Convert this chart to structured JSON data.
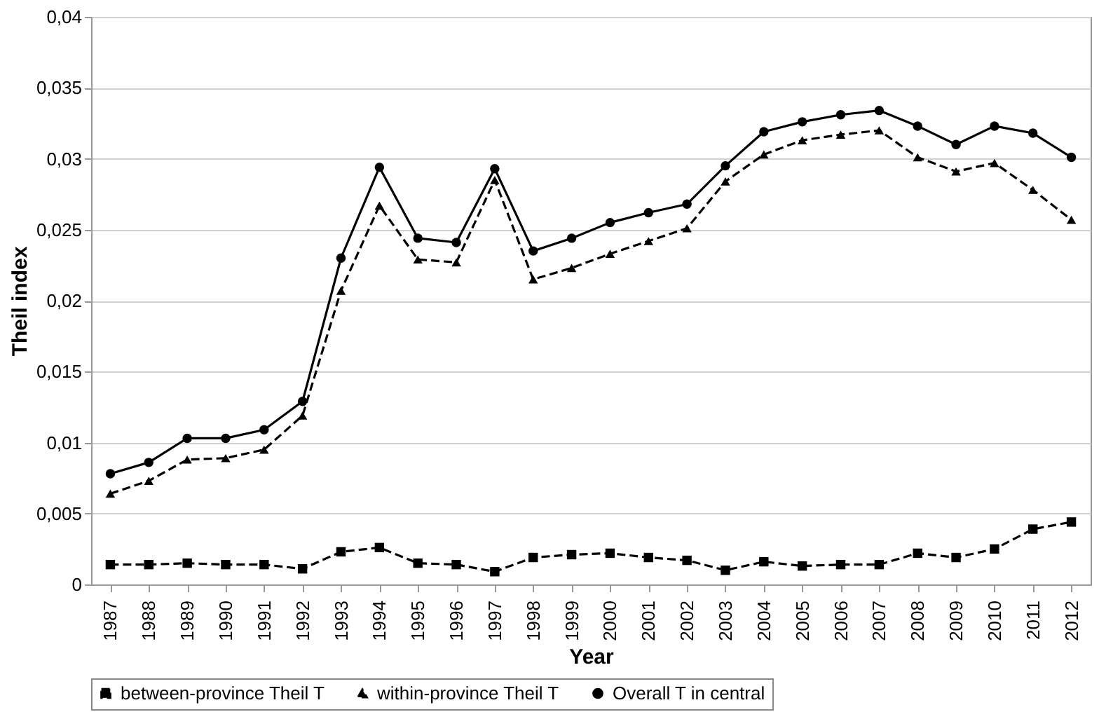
{
  "chart_data": {
    "type": "line",
    "xlabel": "Year",
    "ylabel": "Theil index",
    "categories": [
      "1987",
      "1988",
      "1989",
      "1990",
      "1991",
      "1992",
      "1993",
      "1994",
      "1995",
      "1996",
      "1997",
      "1998",
      "1999",
      "2000",
      "2001",
      "2002",
      "2003",
      "2004",
      "2005",
      "2006",
      "2007",
      "2008",
      "2009",
      "2010",
      "2011",
      "2012"
    ],
    "series": [
      {
        "name": "between-province Theil T",
        "color": "#000000",
        "marker": "square",
        "line_style": "dashed",
        "values": [
          0.0014,
          0.0014,
          0.0015,
          0.0014,
          0.0014,
          0.0011,
          0.0023,
          0.0026,
          0.0015,
          0.0014,
          0.0009,
          0.0019,
          0.0021,
          0.0022,
          0.0019,
          0.0017,
          0.001,
          0.0016,
          0.0013,
          0.0014,
          0.0014,
          0.0022,
          0.0019,
          0.0025,
          0.0039,
          0.0044
        ]
      },
      {
        "name": "within-province Theil T",
        "color": "#000000",
        "marker": "triangle",
        "line_style": "dashed",
        "values": [
          0.0064,
          0.0073,
          0.0088,
          0.0089,
          0.0095,
          0.0119,
          0.0207,
          0.0267,
          0.0229,
          0.0227,
          0.0285,
          0.0215,
          0.0223,
          0.0233,
          0.0242,
          0.0251,
          0.0284,
          0.0303,
          0.0313,
          0.0317,
          0.032,
          0.0301,
          0.0291,
          0.0297,
          0.0278,
          0.0257
        ]
      },
      {
        "name": "Overall T in central",
        "color": "#000000",
        "marker": "circle",
        "line_style": "solid",
        "values": [
          0.0078,
          0.0086,
          0.0103,
          0.0103,
          0.0109,
          0.0129,
          0.023,
          0.0294,
          0.0244,
          0.0241,
          0.0293,
          0.0235,
          0.0244,
          0.0255,
          0.0262,
          0.0268,
          0.0295,
          0.0319,
          0.0326,
          0.0331,
          0.0334,
          0.0323,
          0.031,
          0.0323,
          0.0318,
          0.0301
        ]
      }
    ],
    "ylim": [
      0,
      0.04
    ],
    "yticks": [
      0,
      {
        "value": 0.005,
        "label": "0,005"
      },
      {
        "value": 0.01,
        "label": "0,01"
      },
      {
        "value": 0.015,
        "label": "0,015"
      },
      {
        "value": 0.02,
        "label": "0,02"
      },
      {
        "value": 0.025,
        "label": "0,025"
      },
      {
        "value": 0.03,
        "label": "0,03"
      },
      {
        "value": 0.035,
        "label": "0,035"
      },
      {
        "value": 0.04,
        "label": "0,04"
      }
    ],
    "grid": "y",
    "legend": "bottom"
  }
}
